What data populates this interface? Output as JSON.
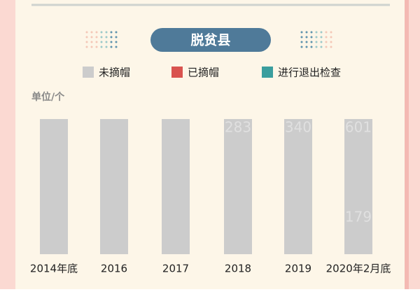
{
  "chart_data": {
    "type": "bar",
    "title": "脱贫县",
    "unit_label": "单位/个",
    "categories": [
      "2014年底",
      "2016",
      "2017",
      "2018",
      "2019",
      "2020年2月底"
    ],
    "series": [
      {
        "name": "未摘帽",
        "color": "#cccccc",
        "values": [
          832,
          832,
          832,
          832,
          832,
          832
        ]
      },
      {
        "name": "已摘帽",
        "color": "#d9534f",
        "values": [
          null,
          null,
          null,
          null,
          null,
          null
        ]
      },
      {
        "name": "进行退出检查",
        "color": "#3a9e9e",
        "values": [
          null,
          null,
          null,
          null,
          null,
          null
        ]
      }
    ],
    "ylim": [
      0,
      832
    ],
    "annotations": [
      "283",
      "340",
      "601",
      "179"
    ]
  }
}
